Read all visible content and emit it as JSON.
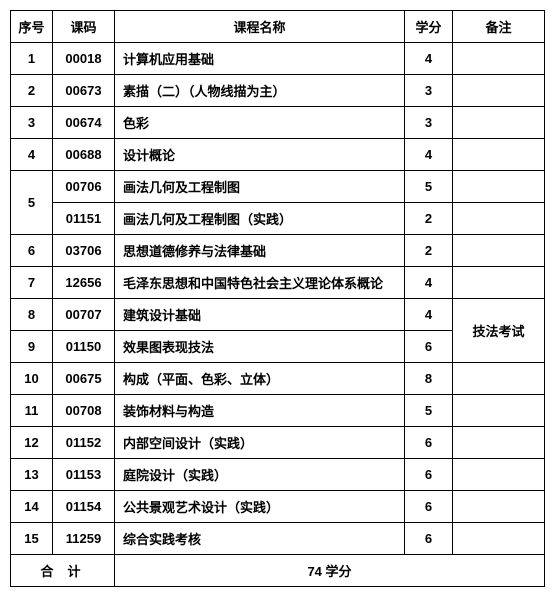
{
  "table": {
    "headers": {
      "idx": "序号",
      "code": "课码",
      "name": "课程名称",
      "credit": "学分",
      "note": "备注"
    },
    "rows": [
      {
        "idx": "1",
        "code": "00018",
        "name": "计算机应用基础",
        "credit": "4",
        "note": ""
      },
      {
        "idx": "2",
        "code": "00673",
        "name": "素描（二）（人物线描为主）",
        "credit": "3",
        "note": ""
      },
      {
        "idx": "3",
        "code": "00674",
        "name": "色彩",
        "credit": "3",
        "note": ""
      },
      {
        "idx": "4",
        "code": "00688",
        "name": "设计概论",
        "credit": "4",
        "note": ""
      },
      {
        "idx": "5",
        "code": "00706",
        "name": "画法几何及工程制图",
        "credit": "5",
        "note": "",
        "rowspan_idx": 2
      },
      {
        "code": "01151",
        "name": "画法几何及工程制图（实践）",
        "credit": "2",
        "note": ""
      },
      {
        "idx": "6",
        "code": "03706",
        "name": "思想道德修养与法律基础",
        "credit": "2",
        "note": ""
      },
      {
        "idx": "7",
        "code": "12656",
        "name": "毛泽东思想和中国特色社会主义理论体系概论",
        "credit": "4",
        "note": ""
      },
      {
        "idx": "8",
        "code": "00707",
        "name": "建筑设计基础",
        "credit": "4",
        "note": "技法考试",
        "rowspan_note": 2
      },
      {
        "idx": "9",
        "code": "01150",
        "name": "效果图表现技法",
        "credit": "6"
      },
      {
        "idx": "10",
        "code": "00675",
        "name": "构成（平面、色彩、立体）",
        "credit": "8",
        "note": ""
      },
      {
        "idx": "11",
        "code": "00708",
        "name": "装饰材料与构造",
        "credit": "5",
        "note": ""
      },
      {
        "idx": "12",
        "code": "01152",
        "name": "内部空间设计（实践）",
        "credit": "6",
        "note": ""
      },
      {
        "idx": "13",
        "code": "01153",
        "name": "庭院设计（实践）",
        "credit": "6",
        "note": ""
      },
      {
        "idx": "14",
        "code": "01154",
        "name": "公共景观艺术设计（实践）",
        "credit": "6",
        "note": ""
      },
      {
        "idx": "15",
        "code": "11259",
        "name": "综合实践考核",
        "credit": "6",
        "note": ""
      }
    ],
    "total": {
      "label": "合计",
      "value": "74 学分"
    },
    "border_color": "#000000",
    "background_color": "#ffffff",
    "font_size": 13
  }
}
